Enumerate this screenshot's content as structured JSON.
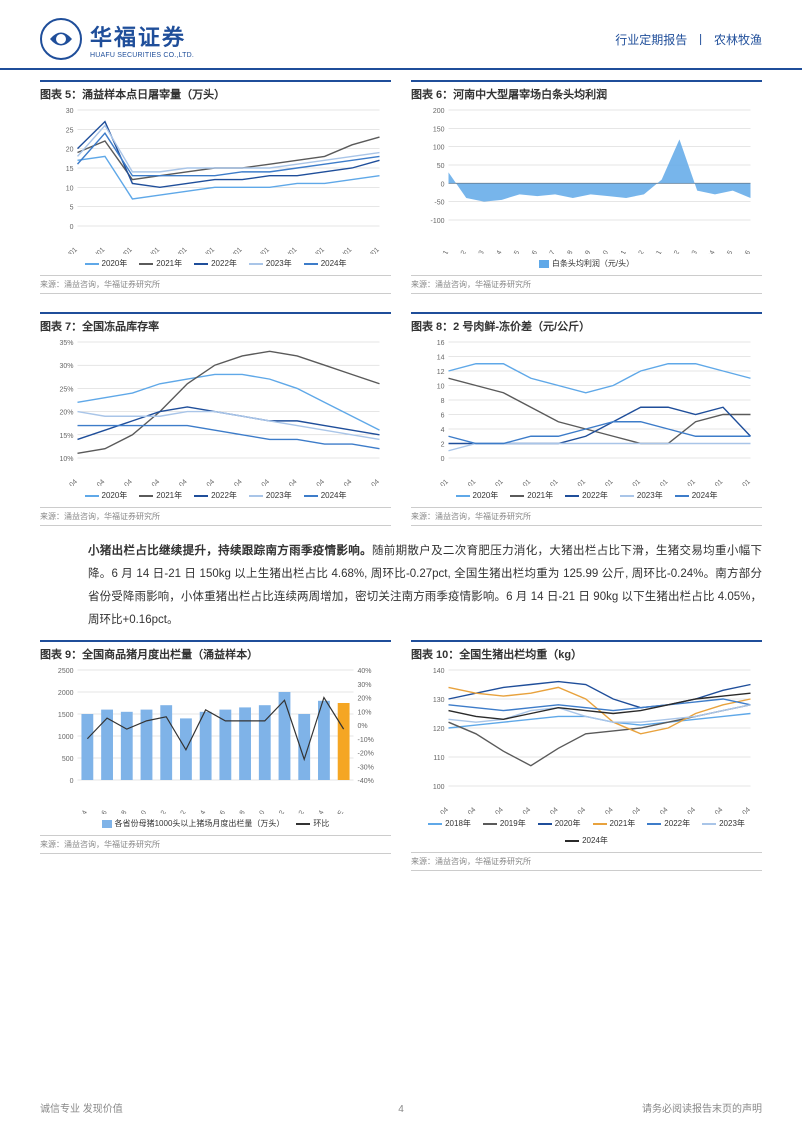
{
  "header": {
    "logo_cn": "华福证券",
    "logo_en": "HUAFU SECURITIES CO.,LTD.",
    "report_type": "行业定期报告",
    "sector": "农林牧渔"
  },
  "paragraph": {
    "bold_lead": "小猪出栏占比继续提升，持续跟踪南方雨季疫情影响。",
    "body": "随前期散户及二次育肥压力消化，大猪出栏占比下滑，生猪交易均重小幅下降。6 月 14 日-21 日 150kg 以上生猪出栏占比 4.68%, 周环比-0.27pct, 全国生猪出栏均重为 125.99 公斤, 周环比-0.24%。南方部分省份受降雨影响，小体重猪出栏占比连续两周增加，密切关注南方雨季疫情影响。6 月 14 日-21 日 90kg 以下生猪出栏占比 4.05%，周环比+0.16pct。"
  },
  "charts": {
    "c5": {
      "title": "图表 5：涌益样本点日屠宰量（万头）",
      "type": "line",
      "x_labels": [
        "01/01",
        "02/01",
        "03/01",
        "04/01",
        "05/01",
        "06/01",
        "07/01",
        "08/01",
        "09/01",
        "10/01",
        "11/01",
        "12/01"
      ],
      "ylim": [
        0,
        30
      ],
      "ytick_step": 5,
      "series": [
        {
          "name": "2020年",
          "color": "#5fa8e8",
          "data": [
            17,
            18,
            7,
            8,
            9,
            10,
            10,
            10,
            11,
            11,
            12,
            13
          ]
        },
        {
          "name": "2021年",
          "color": "#5a5a5a",
          "data": [
            19,
            22,
            12,
            13,
            14,
            15,
            15,
            16,
            17,
            18,
            21,
            23
          ]
        },
        {
          "name": "2022年",
          "color": "#1f4e9a",
          "data": [
            20,
            27,
            11,
            10,
            11,
            12,
            12,
            13,
            13,
            14,
            15,
            17
          ]
        },
        {
          "name": "2023年",
          "color": "#a9c5e8",
          "data": [
            18,
            26,
            14,
            14,
            15,
            15,
            15,
            15,
            16,
            17,
            18,
            19
          ]
        },
        {
          "name": "2024年",
          "color": "#3d7cc9",
          "data": [
            16,
            24,
            13,
            13,
            13,
            13,
            14,
            14,
            15,
            16,
            17,
            18
          ]
        }
      ],
      "source": "来源：涌益咨询，华福证券研究所"
    },
    "c6": {
      "title": "图表 6：河南中大型屠宰场白条头均利润",
      "type": "area",
      "x_labels": [
        "2023-01",
        "2023-02",
        "2023-03",
        "2023-04",
        "2023-05",
        "2023-06",
        "2023-07",
        "2023-08",
        "2023-09",
        "2023-10",
        "2023-11",
        "2023-12",
        "2024-01",
        "2024-02",
        "2024-03",
        "2024-04",
        "2024-05",
        "2024-06"
      ],
      "ylim": [
        -100,
        200
      ],
      "ytick_step": 50,
      "series": [
        {
          "name": "白条头均利润（元/头）",
          "color": "#5fa8e8",
          "data": [
            30,
            -40,
            -50,
            -45,
            -30,
            -35,
            -30,
            -40,
            -30,
            -35,
            -40,
            -30,
            10,
            120,
            -20,
            -30,
            -20,
            -40
          ]
        }
      ],
      "source": "来源：涌益咨询，华福证券研究所"
    },
    "c7": {
      "title": "图表 7：全国冻品库存率",
      "type": "line",
      "x_labels": [
        "01-04",
        "02-04",
        "03-04",
        "04-04",
        "05-04",
        "06-04",
        "07-04",
        "08-04",
        "09-04",
        "10-04",
        "11-04",
        "12-04"
      ],
      "ylim": [
        10,
        35
      ],
      "ytick_step": 5,
      "y_suffix": "%",
      "series": [
        {
          "name": "2020年",
          "color": "#5fa8e8",
          "data": [
            22,
            23,
            24,
            26,
            27,
            28,
            28,
            27,
            25,
            22,
            19,
            16
          ]
        },
        {
          "name": "2021年",
          "color": "#5a5a5a",
          "data": [
            11,
            12,
            15,
            20,
            26,
            30,
            32,
            33,
            32,
            30,
            28,
            26
          ]
        },
        {
          "name": "2022年",
          "color": "#1f4e9a",
          "data": [
            14,
            16,
            18,
            20,
            21,
            20,
            19,
            18,
            18,
            17,
            16,
            15
          ]
        },
        {
          "name": "2023年",
          "color": "#a9c5e8",
          "data": [
            20,
            19,
            19,
            19,
            20,
            20,
            19,
            18,
            17,
            16,
            15,
            14
          ]
        },
        {
          "name": "2024年",
          "color": "#3d7cc9",
          "data": [
            17,
            17,
            17,
            17,
            17,
            16,
            15,
            14,
            14,
            13,
            13,
            12
          ]
        }
      ],
      "source": "来源：涌益咨询，华福证券研究所"
    },
    "c8": {
      "title": "图表 8：2 号肉鲜-冻价差（元/公斤）",
      "type": "line",
      "x_labels": [
        "01-01",
        "02-01",
        "03-01",
        "04-01",
        "05-01",
        "06-01",
        "07-01",
        "08-01",
        "09-01",
        "10-01",
        "11-01",
        "12-01"
      ],
      "ylim": [
        0,
        16
      ],
      "ytick_step": 2,
      "series": [
        {
          "name": "2020年",
          "color": "#5fa8e8",
          "data": [
            12,
            13,
            13,
            11,
            10,
            9,
            10,
            12,
            13,
            13,
            12,
            11
          ]
        },
        {
          "name": "2021年",
          "color": "#5a5a5a",
          "data": [
            11,
            10,
            9,
            7,
            5,
            4,
            3,
            2,
            2,
            5,
            6,
            6
          ]
        },
        {
          "name": "2022年",
          "color": "#1f4e9a",
          "data": [
            2,
            2,
            2,
            2,
            2,
            3,
            5,
            7,
            7,
            6,
            7,
            3
          ]
        },
        {
          "name": "2023年",
          "color": "#a9c5e8",
          "data": [
            1,
            2,
            2,
            2,
            2,
            2,
            2,
            2,
            2,
            2,
            2,
            2
          ]
        },
        {
          "name": "2024年",
          "color": "#3d7cc9",
          "data": [
            3,
            2,
            2,
            3,
            3,
            4,
            5,
            5,
            4,
            3,
            3,
            3
          ]
        }
      ],
      "source": "来源：涌益咨询，华福证券研究所"
    },
    "c9": {
      "title": "图表 9：全国商品猪月度出栏量（涌益样本）",
      "type": "bar-line",
      "x_labels": [
        "2022-04",
        "2022-06",
        "2022-08",
        "2022-10",
        "2022-12",
        "2023-02",
        "2023-04",
        "2023-06",
        "2023-08",
        "2023-10",
        "2023-12",
        "2024-02",
        "2024-04",
        "2024-06E"
      ],
      "ylim_left": [
        0,
        2500
      ],
      "ytick_left": 500,
      "ylim_right": [
        -40,
        40
      ],
      "ytick_right": 10,
      "y_right_suffix": "%",
      "bars": {
        "name": "各省份母猪1000头以上猪场月度出栏量（万头）",
        "color": "#7fb3e8",
        "data": [
          1500,
          1600,
          1550,
          1600,
          1700,
          1400,
          1550,
          1600,
          1650,
          1700,
          2000,
          1500,
          1800,
          1750
        ]
      },
      "line": {
        "name": "环比",
        "color": "#333333",
        "data": [
          -10,
          5,
          -3,
          3,
          6,
          -18,
          11,
          3,
          3,
          3,
          18,
          -25,
          20,
          -3
        ]
      },
      "highlight_color": "#f5a623",
      "source": "来源：涌益咨询，华福证券研究所"
    },
    "c10": {
      "title": "图表 10：全国生猪出栏均重（kg）",
      "type": "line",
      "x_labels": [
        "01-04",
        "02-04",
        "03-04",
        "04-04",
        "05-04",
        "06-04",
        "07-04",
        "08-04",
        "09-04",
        "10-04",
        "11-04",
        "12-04"
      ],
      "ylim": [
        100,
        140
      ],
      "ytick_step": 10,
      "series": [
        {
          "name": "2018年",
          "color": "#5fa8e8",
          "data": [
            120,
            121,
            122,
            123,
            124,
            124,
            122,
            121,
            122,
            123,
            124,
            125
          ]
        },
        {
          "name": "2019年",
          "color": "#5a5a5a",
          "data": [
            122,
            118,
            112,
            107,
            113,
            118,
            119,
            120,
            122,
            124,
            126,
            128
          ]
        },
        {
          "name": "2020年",
          "color": "#1f4e9a",
          "data": [
            130,
            132,
            134,
            135,
            136,
            135,
            130,
            127,
            128,
            130,
            133,
            135
          ]
        },
        {
          "name": "2021年",
          "color": "#e8a23d",
          "data": [
            134,
            132,
            131,
            132,
            134,
            130,
            122,
            118,
            120,
            125,
            128,
            130
          ]
        },
        {
          "name": "2022年",
          "color": "#3d7cc9",
          "data": [
            128,
            127,
            126,
            127,
            128,
            127,
            126,
            127,
            128,
            129,
            130,
            128
          ]
        },
        {
          "name": "2023年",
          "color": "#a9c5e8",
          "data": [
            123,
            122,
            123,
            126,
            127,
            124,
            122,
            122,
            123,
            124,
            126,
            128
          ]
        },
        {
          "name": "2024年",
          "color": "#2a2a2a",
          "data": [
            126,
            124,
            123,
            125,
            127,
            126,
            125,
            126,
            128,
            130,
            131,
            132
          ]
        }
      ],
      "source": "来源：涌益咨询，华福证券研究所"
    }
  },
  "footer": {
    "left": "诚信专业  发现价值",
    "page": "4",
    "right": "请务必阅读报告末页的声明"
  },
  "colors": {
    "brand": "#1f4e9a",
    "grid": "#cccccc",
    "text": "#333333"
  }
}
